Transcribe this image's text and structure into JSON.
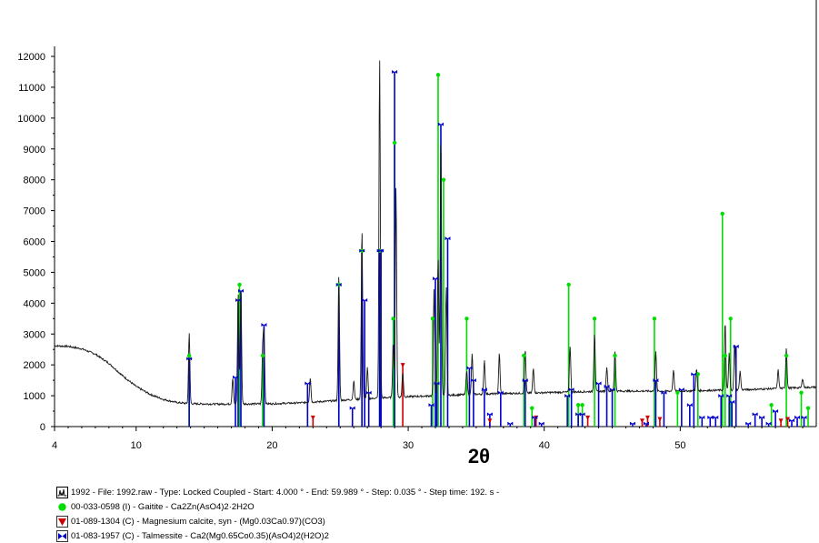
{
  "chart_data": {
    "type": "line",
    "title": "",
    "xlabel": "2θ",
    "ylabel": "",
    "xlim": [
      4,
      60
    ],
    "ylim": [
      0,
      12000
    ],
    "x_ticks": [
      "4",
      "10",
      "20",
      "30",
      "40",
      "50"
    ],
    "y_ticks": [
      "0",
      "1000",
      "2000",
      "3000",
      "4000",
      "5000",
      "6000",
      "7000",
      "8000",
      "9000",
      "10000",
      "11000",
      "12000"
    ],
    "grid": false,
    "legend_position": "bottom-left",
    "colors": {
      "pattern": "#1a1a1a",
      "gaitite": "#00dd00",
      "magnesium_calcite": "#cc0000",
      "talmessite": "#0000cc"
    },
    "measured_pattern": {
      "name": "1992 - File: 1992.raw - Type: Locked Coupled - Start: 4.000 ° - End: 59.989 ° - Step: 0.035 ° - Step time: 192. s -",
      "background": [
        [
          4,
          2620
        ],
        [
          5,
          2600
        ],
        [
          6,
          2520
        ],
        [
          7,
          2350
        ],
        [
          8,
          2050
        ],
        [
          9,
          1650
        ],
        [
          10,
          1300
        ],
        [
          11,
          1050
        ],
        [
          12,
          880
        ],
        [
          13,
          780
        ],
        [
          14,
          740
        ],
        [
          16,
          730
        ],
        [
          18,
          735
        ],
        [
          20,
          740
        ],
        [
          22,
          770
        ],
        [
          24,
          820
        ],
        [
          26,
          880
        ],
        [
          28,
          930
        ],
        [
          30,
          970
        ],
        [
          32,
          1000
        ],
        [
          35,
          1050
        ],
        [
          40,
          1100
        ],
        [
          45,
          1150
        ],
        [
          50,
          1150
        ],
        [
          55,
          1200
        ],
        [
          60,
          1280
        ]
      ],
      "peaks": [
        [
          13.9,
          2300
        ],
        [
          17.1,
          850
        ],
        [
          17.5,
          3600
        ],
        [
          17.7,
          3800
        ],
        [
          19.3,
          1700
        ],
        [
          19.4,
          2200
        ],
        [
          22.8,
          800
        ],
        [
          24.9,
          4000
        ],
        [
          26.0,
          600
        ],
        [
          26.6,
          5500
        ],
        [
          27.0,
          1000
        ],
        [
          27.9,
          11000
        ],
        [
          28.9,
          1800
        ],
        [
          29.1,
          6800
        ],
        [
          29.6,
          800
        ],
        [
          31.9,
          3500
        ],
        [
          32.2,
          4500
        ],
        [
          32.4,
          8500
        ],
        [
          32.8,
          3500
        ],
        [
          34.3,
          800
        ],
        [
          34.7,
          1300
        ],
        [
          35.6,
          1100
        ],
        [
          36.7,
          1300
        ],
        [
          38.6,
          1400
        ],
        [
          39.2,
          800
        ],
        [
          41.9,
          1500
        ],
        [
          43.7,
          1900
        ],
        [
          44.6,
          800
        ],
        [
          45.2,
          1300
        ],
        [
          48.2,
          1300
        ],
        [
          49.5,
          700
        ],
        [
          51.2,
          700
        ],
        [
          53.3,
          2200
        ],
        [
          53.6,
          1200
        ],
        [
          54.0,
          1500
        ],
        [
          54.4,
          600
        ],
        [
          57.2,
          600
        ],
        [
          57.8,
          1300
        ],
        [
          59.0,
          300
        ]
      ]
    },
    "reference_patterns": [
      {
        "name": "00-033-0598 (I) - Gaitite - Ca2Zn(AsO4)2·2H2O",
        "marker": "circle",
        "sticks": [
          [
            13.9,
            2300
          ],
          [
            17.6,
            4600
          ],
          [
            19.3,
            2300
          ],
          [
            24.9,
            4600
          ],
          [
            26.6,
            5700
          ],
          [
            27.9,
            5700
          ],
          [
            28.9,
            3500
          ],
          [
            29.0,
            9200
          ],
          [
            31.8,
            3500
          ],
          [
            32.2,
            11400
          ],
          [
            32.6,
            8000
          ],
          [
            34.3,
            3500
          ],
          [
            38.5,
            2300
          ],
          [
            39.1,
            600
          ],
          [
            41.8,
            4600
          ],
          [
            42.5,
            700
          ],
          [
            42.8,
            700
          ],
          [
            43.7,
            3500
          ],
          [
            45.2,
            2300
          ],
          [
            48.1,
            3500
          ],
          [
            49.8,
            1100
          ],
          [
            51.3,
            1700
          ],
          [
            53.1,
            6900
          ],
          [
            53.3,
            2300
          ],
          [
            53.7,
            3500
          ],
          [
            56.7,
            700
          ],
          [
            57.8,
            2300
          ],
          [
            58.9,
            1100
          ],
          [
            59.4,
            600
          ]
        ]
      },
      {
        "name": "01-089-1304 (C) - Magnesium calcite, syn - (Mg0.03Ca0.97)(CO3)",
        "marker": "triangle",
        "sticks": [
          [
            23.0,
            300
          ],
          [
            29.6,
            2000
          ],
          [
            36.0,
            200
          ],
          [
            39.4,
            300
          ],
          [
            43.2,
            300
          ],
          [
            47.2,
            200
          ],
          [
            47.6,
            300
          ],
          [
            48.5,
            250
          ],
          [
            57.4,
            200
          ],
          [
            57.9,
            250
          ]
        ]
      },
      {
        "name": "01-083-1957 (C) - Talmessite - Ca2(Mg0.65Co0.35)(AsO4)2(H2O)2",
        "marker": "bowtie",
        "sticks": [
          [
            13.9,
            2200
          ],
          [
            17.3,
            1600
          ],
          [
            17.5,
            4100
          ],
          [
            17.7,
            4400
          ],
          [
            19.4,
            3300
          ],
          [
            22.6,
            1400
          ],
          [
            24.9,
            4600
          ],
          [
            25.9,
            600
          ],
          [
            26.6,
            5700
          ],
          [
            26.8,
            4100
          ],
          [
            27.1,
            1100
          ],
          [
            27.9,
            5700
          ],
          [
            28.0,
            5700
          ],
          [
            29.0,
            11500
          ],
          [
            31.7,
            700
          ],
          [
            32.0,
            4800
          ],
          [
            32.1,
            1400
          ],
          [
            32.4,
            9800
          ],
          [
            32.9,
            6100
          ],
          [
            34.5,
            1900
          ],
          [
            34.8,
            1500
          ],
          [
            35.6,
            1200
          ],
          [
            36.0,
            400
          ],
          [
            36.8,
            1100
          ],
          [
            37.5,
            100
          ],
          [
            38.6,
            1500
          ],
          [
            39.3,
            300
          ],
          [
            39.8,
            100
          ],
          [
            41.7,
            1000
          ],
          [
            42.0,
            1200
          ],
          [
            42.5,
            400
          ],
          [
            42.8,
            400
          ],
          [
            44.0,
            1400
          ],
          [
            44.6,
            1300
          ],
          [
            45.0,
            1200
          ],
          [
            46.5,
            100
          ],
          [
            47.5,
            100
          ],
          [
            48.2,
            1500
          ],
          [
            48.8,
            1100
          ],
          [
            50.1,
            1200
          ],
          [
            50.7,
            700
          ],
          [
            51.0,
            1700
          ],
          [
            51.6,
            300
          ],
          [
            52.2,
            300
          ],
          [
            52.6,
            300
          ],
          [
            53.0,
            1000
          ],
          [
            53.6,
            1000
          ],
          [
            53.8,
            800
          ],
          [
            54.1,
            2600
          ],
          [
            55.0,
            100
          ],
          [
            55.5,
            400
          ],
          [
            56.0,
            300
          ],
          [
            56.5,
            100
          ],
          [
            57.0,
            500
          ],
          [
            58.2,
            200
          ],
          [
            58.6,
            300
          ],
          [
            59.1,
            300
          ]
        ]
      }
    ]
  }
}
